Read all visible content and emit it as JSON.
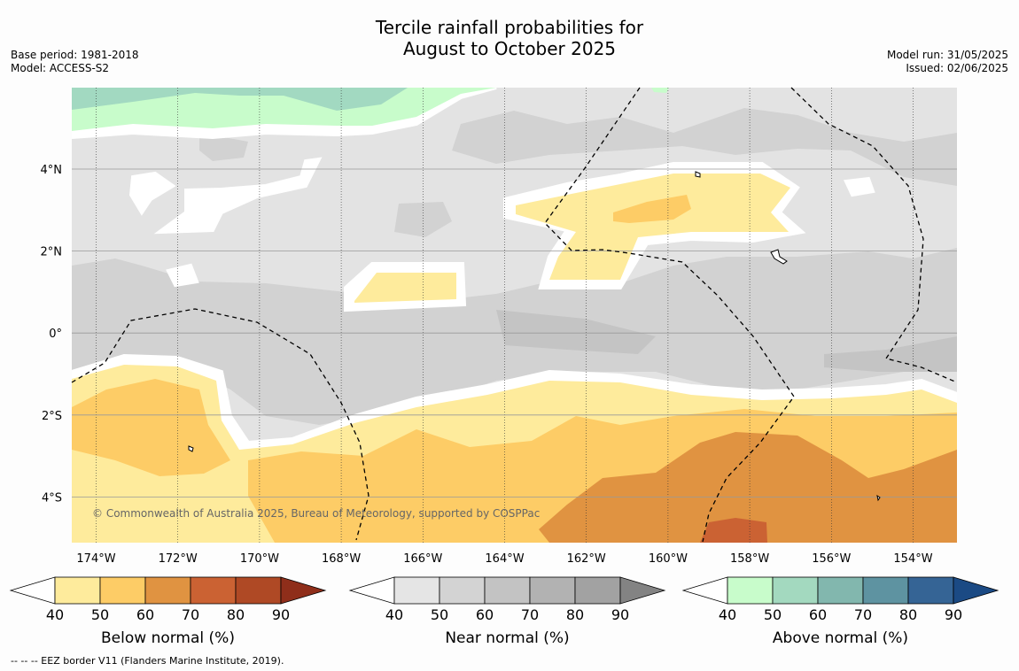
{
  "title": {
    "line1": "Tercile rainfall probabilities for",
    "line2": "August to October 2025"
  },
  "info_left": {
    "base_period": "Base period: 1981-2018",
    "model": "Model: ACCESS-S2"
  },
  "info_right": {
    "model_run": "Model run: 31/05/2025",
    "issued": "Issued: 02/06/2025"
  },
  "map": {
    "longitude_labels": [
      "174°W",
      "172°W",
      "170°W",
      "168°W",
      "166°W",
      "164°W",
      "162°W",
      "160°W",
      "158°W",
      "156°W",
      "154°W"
    ],
    "latitude_labels": [
      "4°N",
      "2°N",
      "0°",
      "2°S",
      "4°S"
    ],
    "copyright": "© Commonwealth of Australia 2025, Bureau of Meteorology, supported by COSPPac",
    "colors": {
      "background": "#e3e3e3",
      "near_light": "#d2d2d2",
      "near_mid": "#c4c4c4",
      "below_50": "#feeb9c",
      "below_60": "#fdcc66",
      "below_70": "#e09341",
      "below_80": "#cb6233",
      "above_50": "#c8fccb",
      "above_60": "#a2d9c1"
    }
  },
  "legends": [
    {
      "label": "Below normal (%)",
      "ticks": [
        "40",
        "50",
        "60",
        "70",
        "80",
        "90"
      ],
      "colors": [
        "#ffffff",
        "#feeb9c",
        "#fdcc66",
        "#e09341",
        "#cb6233",
        "#af4925",
        "#8f2e1a"
      ]
    },
    {
      "label": "Near normal (%)",
      "ticks": [
        "40",
        "50",
        "60",
        "70",
        "80",
        "90"
      ],
      "colors": [
        "#ffffff",
        "#e5e5e5",
        "#d3d3d3",
        "#c3c3c3",
        "#b2b2b2",
        "#a2a2a2",
        "#838383"
      ]
    },
    {
      "label": "Above normal (%)",
      "ticks": [
        "40",
        "50",
        "60",
        "70",
        "80",
        "90"
      ],
      "colors": [
        "#ffffff",
        "#c8fccb",
        "#a3d9bf",
        "#82b7ae",
        "#5e93a1",
        "#356495",
        "#1b4a84"
      ]
    }
  ],
  "footnote": "--  --  -- EEZ border V11 (Flanders Marine Institute, 2019)."
}
